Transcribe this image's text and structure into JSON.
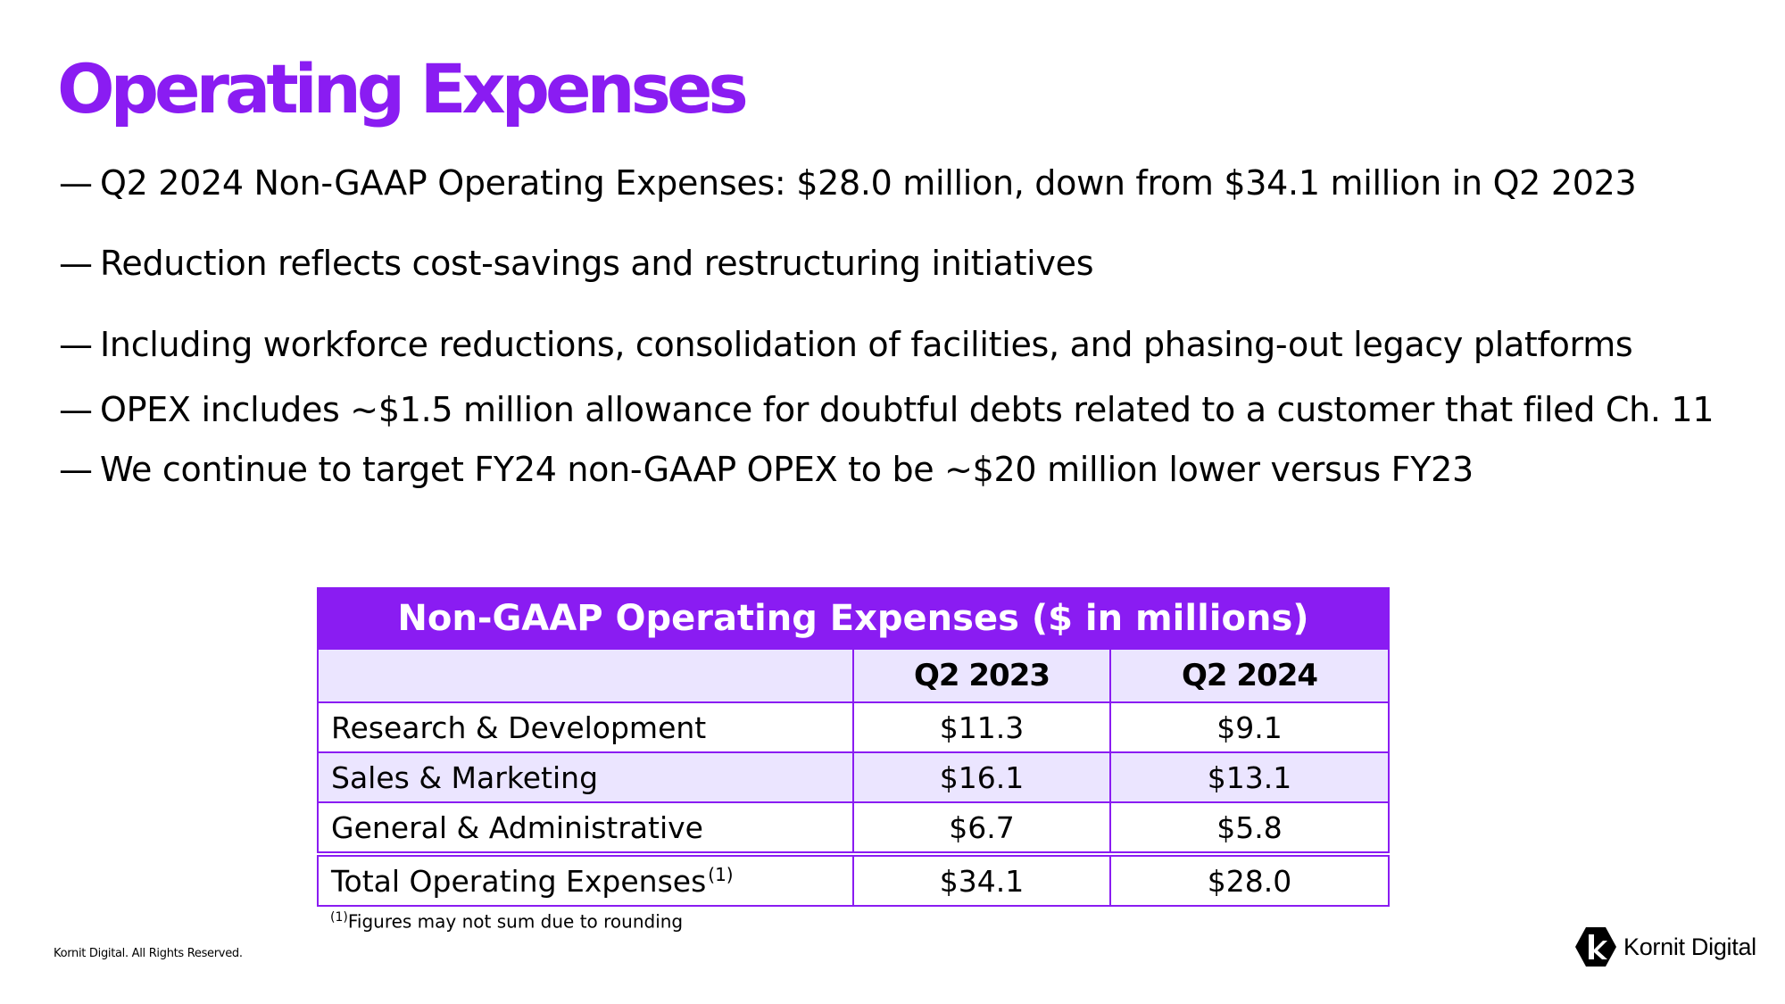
{
  "title": "Operating Expenses",
  "bullets": [
    {
      "dash": "—",
      "text": "Q2 2024 Non-GAAP Operating Expenses: $28.0 million, down from $34.1 million in Q2 2023"
    },
    {
      "dash": "—",
      "text": "Reduction reflects cost-savings and restructuring initiatives"
    },
    {
      "dash": "—",
      "text": "Including workforce reductions, consolidation of facilities, and phasing-out legacy platforms"
    },
    {
      "dash": "—",
      "text": "OPEX includes ~$1.5 million allowance for doubtful debts related to a customer that filed Ch. 11"
    },
    {
      "dash": "—",
      "text": "We continue to target FY24 non-GAAP OPEX to be ~$20 million lower versus FY23"
    }
  ],
  "table": {
    "caption": "Non-GAAP Operating Expenses ($ in millions)",
    "columns": [
      "",
      "Q2 2023",
      "Q2 2024"
    ],
    "rows": [
      {
        "label": "Research & Development",
        "q2_2023": "$11.3",
        "q2_2024": "$9.1"
      },
      {
        "label": "Sales & Marketing",
        "q2_2023": "$16.1",
        "q2_2024": "$13.1"
      },
      {
        "label": "General & Administrative",
        "q2_2023": "$6.7",
        "q2_2024": "$5.8"
      }
    ],
    "total": {
      "label": "Total Operating Expenses",
      "note_marker": "(1)",
      "q2_2023": "$34.1",
      "q2_2024": "$28.0"
    }
  },
  "footnote": {
    "marker": "(1)",
    "text": "Figures may not sum due to rounding"
  },
  "copyright": "Kornit Digital. All Rights Reserved.",
  "logo": {
    "text": "Kornit Digital",
    "icon": "kornit-k-logo-icon",
    "color": "#000000"
  },
  "colors": {
    "accent": "#8a1cf2",
    "row_alt": "#ebe5ff"
  }
}
